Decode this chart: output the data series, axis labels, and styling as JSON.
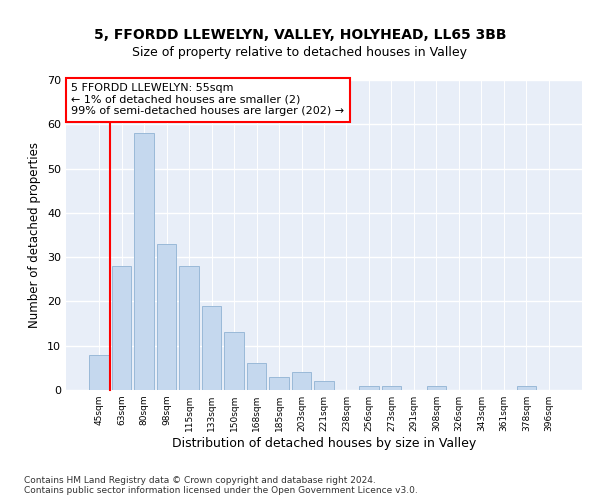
{
  "title1": "5, FFORDD LLEWELYN, VALLEY, HOLYHEAD, LL65 3BB",
  "title2": "Size of property relative to detached houses in Valley",
  "xlabel": "Distribution of detached houses by size in Valley",
  "ylabel": "Number of detached properties",
  "categories": [
    "45sqm",
    "63sqm",
    "80sqm",
    "98sqm",
    "115sqm",
    "133sqm",
    "150sqm",
    "168sqm",
    "185sqm",
    "203sqm",
    "221sqm",
    "238sqm",
    "256sqm",
    "273sqm",
    "291sqm",
    "308sqm",
    "326sqm",
    "343sqm",
    "361sqm",
    "378sqm",
    "396sqm"
  ],
  "values": [
    8,
    28,
    58,
    33,
    28,
    19,
    13,
    6,
    3,
    4,
    2,
    0,
    1,
    1,
    0,
    1,
    0,
    0,
    0,
    1,
    0
  ],
  "bar_color": "#c5d8ee",
  "bar_edge_color": "#9ab9d8",
  "bg_color": "#e8eef8",
  "annotation_box_text": "5 FFORDD LLEWELYN: 55sqm\n← 1% of detached houses are smaller (2)\n99% of semi-detached houses are larger (202) →",
  "red_line_bar_index": 1,
  "ylim": [
    0,
    70
  ],
  "yticks": [
    0,
    10,
    20,
    30,
    40,
    50,
    60,
    70
  ],
  "footnote": "Contains HM Land Registry data © Crown copyright and database right 2024.\nContains public sector information licensed under the Open Government Licence v3.0.",
  "title1_fontsize": 10,
  "title2_fontsize": 9,
  "xlabel_fontsize": 9,
  "ylabel_fontsize": 8.5,
  "annot_fontsize": 8,
  "footnote_fontsize": 6.5
}
